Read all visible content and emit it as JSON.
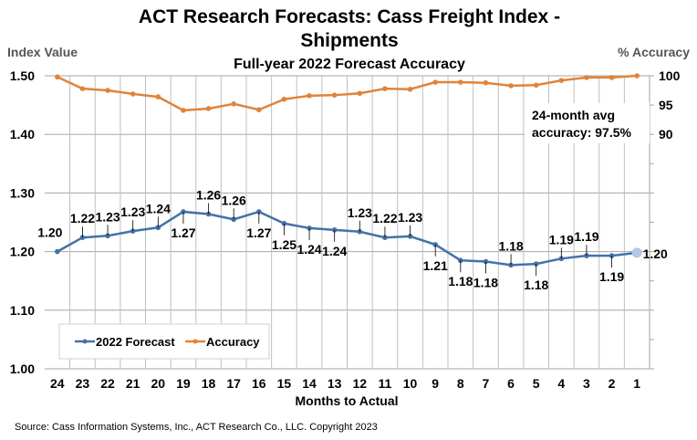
{
  "chart_data": {
    "type": "line",
    "title_line1": "ACT Research Forecasts: Cass Freight Index -",
    "title_line2": "Shipments",
    "subtitle": "Full-year 2022 Forecast Accuracy",
    "xlabel": "Months to Actual",
    "ylabel_left": "Index Value",
    "ylabel_right": "% Accuracy",
    "categories": [
      "24",
      "23",
      "22",
      "21",
      "20",
      "19",
      "18",
      "17",
      "16",
      "15",
      "14",
      "13",
      "12",
      "11",
      "10",
      "9",
      "8",
      "7",
      "6",
      "5",
      "4",
      "3",
      "2",
      "1"
    ],
    "ylim_left": [
      1.0,
      1.5
    ],
    "yticks_left": [
      "1.00",
      "1.10",
      "1.20",
      "1.30",
      "1.40",
      "1.50"
    ],
    "ylim_right": [
      50,
      100
    ],
    "yticks_right": [
      "90",
      "95",
      "100"
    ],
    "grid": true,
    "legend_placement": "bottom-left",
    "series": [
      {
        "name": "2022 Forecast",
        "axis": "left",
        "color": "#4472a8",
        "values": [
          1.2,
          1.224,
          1.227,
          1.235,
          1.241,
          1.268,
          1.264,
          1.255,
          1.268,
          1.248,
          1.24,
          1.237,
          1.234,
          1.224,
          1.226,
          1.212,
          1.185,
          1.183,
          1.177,
          1.179,
          1.188,
          1.193,
          1.193,
          1.198
        ],
        "data_labels": [
          "1.20",
          "1.22",
          "1.23",
          "1.23",
          "1.24",
          "1.27",
          "1.26",
          "1.26",
          "1.27",
          "1.25",
          "1.24",
          "1.24",
          "1.23",
          "1.22",
          "1.23",
          "1.21",
          "1.18",
          "1.18",
          "1.18",
          "1.18",
          "1.19",
          "1.19",
          "1.19",
          "1.20"
        ]
      },
      {
        "name": "Accuracy",
        "axis": "right",
        "color": "#e0843a",
        "values": [
          99.8,
          97.8,
          97.5,
          96.9,
          96.4,
          94.1,
          94.4,
          95.2,
          94.2,
          96.0,
          96.6,
          96.7,
          97.0,
          97.8,
          97.7,
          98.9,
          98.9,
          98.8,
          98.3,
          98.4,
          99.2,
          99.7,
          99.7,
          100.0
        ]
      }
    ],
    "annotation_line1": "24-month avg",
    "annotation_line2": "accuracy: 97.5%",
    "source": "Source: Cass Information Systems, Inc., ACT Research Co., LLC. Copyright 2023"
  }
}
